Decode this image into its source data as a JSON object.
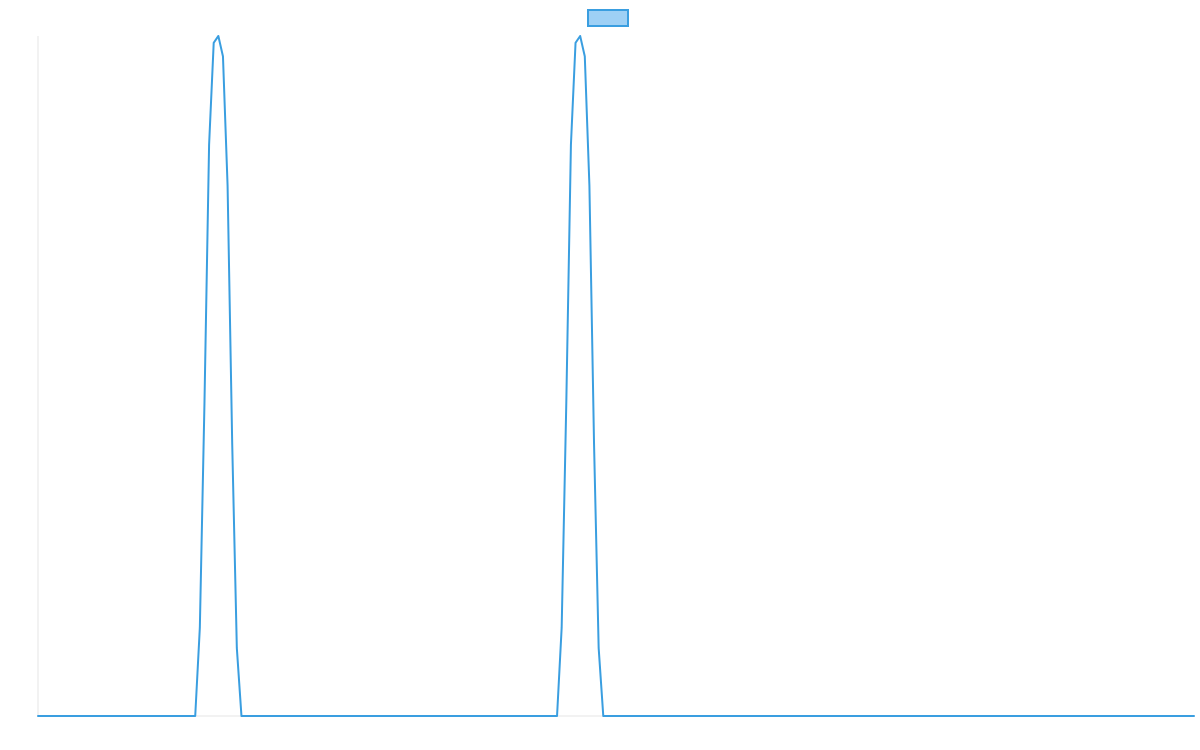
{
  "chart_data": {
    "type": "line",
    "title": "",
    "xlabel": "",
    "ylabel": "",
    "xlim": [
      0,
      1
    ],
    "ylim": [
      0,
      1
    ],
    "grid": false,
    "legend": {
      "position": "top-center",
      "entries": [
        {
          "label": "",
          "color": "#3a9ee0",
          "fill": "#9ed0f5"
        }
      ]
    },
    "series": [
      {
        "color": "#3a9ee0",
        "points": [
          [
            0.0,
            0.0
          ],
          [
            0.136,
            0.0
          ],
          [
            0.14,
            0.13
          ],
          [
            0.144,
            0.46
          ],
          [
            0.148,
            0.84
          ],
          [
            0.152,
            0.99
          ],
          [
            0.156,
            1.0
          ],
          [
            0.16,
            0.97
          ],
          [
            0.164,
            0.78
          ],
          [
            0.168,
            0.4
          ],
          [
            0.172,
            0.1
          ],
          [
            0.176,
            0.0
          ],
          [
            0.449,
            0.0
          ],
          [
            0.453,
            0.13
          ],
          [
            0.457,
            0.46
          ],
          [
            0.461,
            0.84
          ],
          [
            0.465,
            0.99
          ],
          [
            0.469,
            1.0
          ],
          [
            0.473,
            0.97
          ],
          [
            0.477,
            0.78
          ],
          [
            0.481,
            0.4
          ],
          [
            0.485,
            0.1
          ],
          [
            0.489,
            0.0
          ],
          [
            1.0,
            0.0
          ]
        ]
      }
    ]
  }
}
